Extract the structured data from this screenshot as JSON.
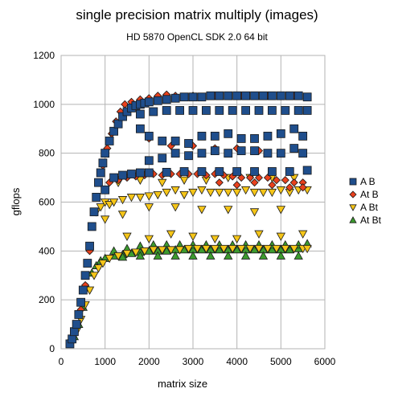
{
  "chart_data": {
    "type": "scatter",
    "title": "single precision matrix multiply (images)",
    "subtitle": "HD 5870 OpenCL SDK 2.0 64 bit",
    "xlabel": "matrix size",
    "ylabel": "gflops",
    "xlim": [
      0,
      6000
    ],
    "ylim": [
      0,
      1200
    ],
    "xticks": [
      0,
      1000,
      2000,
      3000,
      4000,
      5000,
      6000
    ],
    "yticks": [
      0,
      200,
      400,
      600,
      800,
      1000,
      1200
    ],
    "grid": true,
    "legend": "right",
    "series": [
      {
        "name": "A B",
        "marker": "square",
        "color": "#1f4e8c",
        "points": [
          [
            200,
            20
          ],
          [
            250,
            40
          ],
          [
            300,
            70
          ],
          [
            350,
            100
          ],
          [
            400,
            140
          ],
          [
            450,
            190
          ],
          [
            500,
            240
          ],
          [
            550,
            300
          ],
          [
            600,
            350
          ],
          [
            650,
            420
          ],
          [
            700,
            500
          ],
          [
            750,
            560
          ],
          [
            800,
            620
          ],
          [
            850,
            680
          ],
          [
            900,
            720
          ],
          [
            950,
            760
          ],
          [
            1000,
            800
          ],
          [
            1100,
            850
          ],
          [
            1200,
            890
          ],
          [
            1300,
            920
          ],
          [
            1400,
            950
          ],
          [
            1500,
            970
          ],
          [
            1600,
            985
          ],
          [
            1700,
            995
          ],
          [
            1800,
            1000
          ],
          [
            1900,
            1005
          ],
          [
            2000,
            1010
          ],
          [
            2200,
            1015
          ],
          [
            2400,
            1020
          ],
          [
            2600,
            1025
          ],
          [
            2800,
            1030
          ],
          [
            3000,
            1030
          ],
          [
            3200,
            1030
          ],
          [
            3400,
            1035
          ],
          [
            3600,
            1035
          ],
          [
            3800,
            1035
          ],
          [
            4000,
            1035
          ],
          [
            4200,
            1035
          ],
          [
            4400,
            1035
          ],
          [
            4600,
            1035
          ],
          [
            4800,
            1035
          ],
          [
            5000,
            1035
          ],
          [
            5200,
            1035
          ],
          [
            5400,
            1035
          ],
          [
            5600,
            1030
          ],
          [
            1000,
            650
          ],
          [
            1200,
            700
          ],
          [
            1400,
            710
          ],
          [
            1600,
            715
          ],
          [
            1800,
            720
          ],
          [
            2000,
            720
          ],
          [
            2400,
            722
          ],
          [
            2800,
            725
          ],
          [
            3200,
            725
          ],
          [
            3600,
            725
          ],
          [
            4000,
            725
          ],
          [
            4400,
            725
          ],
          [
            4800,
            725
          ],
          [
            5200,
            725
          ],
          [
            5600,
            730
          ],
          [
            1800,
            960
          ],
          [
            2100,
            970
          ],
          [
            2400,
            975
          ],
          [
            2700,
            975
          ],
          [
            3000,
            975
          ],
          [
            3300,
            975
          ],
          [
            3600,
            975
          ],
          [
            3900,
            975
          ],
          [
            4200,
            975
          ],
          [
            4500,
            975
          ],
          [
            4800,
            975
          ],
          [
            5100,
            975
          ],
          [
            5400,
            975
          ],
          [
            5600,
            975
          ],
          [
            1800,
            900
          ],
          [
            2000,
            870
          ],
          [
            2300,
            850
          ],
          [
            2600,
            850
          ],
          [
            2900,
            840
          ],
          [
            3200,
            870
          ],
          [
            3500,
            870
          ],
          [
            3800,
            880
          ],
          [
            4100,
            860
          ],
          [
            4400,
            860
          ],
          [
            4700,
            870
          ],
          [
            5000,
            880
          ],
          [
            5300,
            900
          ],
          [
            5500,
            870
          ],
          [
            2000,
            770
          ],
          [
            2300,
            780
          ],
          [
            2600,
            800
          ],
          [
            2900,
            790
          ],
          [
            3200,
            800
          ],
          [
            3500,
            810
          ],
          [
            3800,
            800
          ],
          [
            4100,
            810
          ],
          [
            4400,
            810
          ],
          [
            4700,
            800
          ],
          [
            5000,
            800
          ],
          [
            5300,
            820
          ],
          [
            5500,
            800
          ]
        ]
      },
      {
        "name": "At B",
        "marker": "diamond",
        "color": "#e8411d",
        "points": [
          [
            250,
            30
          ],
          [
            350,
            90
          ],
          [
            450,
            160
          ],
          [
            550,
            260
          ],
          [
            650,
            400
          ],
          [
            750,
            560
          ],
          [
            850,
            680
          ],
          [
            950,
            750
          ],
          [
            1050,
            820
          ],
          [
            1150,
            880
          ],
          [
            1250,
            930
          ],
          [
            1350,
            970
          ],
          [
            1450,
            1000
          ],
          [
            1600,
            1010
          ],
          [
            1800,
            1020
          ],
          [
            2000,
            1025
          ],
          [
            2200,
            1035
          ],
          [
            2400,
            1040
          ],
          [
            2600,
            1035
          ],
          [
            2800,
            1030
          ],
          [
            3000,
            1035
          ],
          [
            3200,
            1030
          ],
          [
            3500,
            1035
          ],
          [
            3800,
            1035
          ],
          [
            4100,
            1035
          ],
          [
            4400,
            1035
          ],
          [
            4700,
            1035
          ],
          [
            5000,
            1035
          ],
          [
            5300,
            1035
          ],
          [
            5600,
            1030
          ],
          [
            1100,
            680
          ],
          [
            1300,
            690
          ],
          [
            1500,
            700
          ],
          [
            1700,
            705
          ],
          [
            1900,
            710
          ],
          [
            2100,
            715
          ],
          [
            2300,
            710
          ],
          [
            2500,
            715
          ],
          [
            2700,
            715
          ],
          [
            2900,
            715
          ],
          [
            3100,
            715
          ],
          [
            3300,
            710
          ],
          [
            3500,
            715
          ],
          [
            3700,
            710
          ],
          [
            3900,
            705
          ],
          [
            4100,
            700
          ],
          [
            4300,
            700
          ],
          [
            4500,
            700
          ],
          [
            4700,
            700
          ],
          [
            4900,
            690
          ],
          [
            5100,
            690
          ],
          [
            5300,
            680
          ],
          [
            5500,
            680
          ],
          [
            2000,
            860
          ],
          [
            2500,
            830
          ],
          [
            3000,
            830
          ],
          [
            3500,
            820
          ],
          [
            4000,
            820
          ],
          [
            4500,
            810
          ],
          [
            5000,
            800
          ],
          [
            3600,
            680
          ],
          [
            4000,
            670
          ],
          [
            4400,
            680
          ],
          [
            4800,
            670
          ],
          [
            5200,
            660
          ],
          [
            5500,
            660
          ]
        ]
      },
      {
        "name": "A Bt",
        "marker": "triangle-down",
        "color": "#f5c518",
        "points": [
          [
            250,
            25
          ],
          [
            350,
            70
          ],
          [
            450,
            120
          ],
          [
            550,
            180
          ],
          [
            650,
            240
          ],
          [
            750,
            300
          ],
          [
            850,
            330
          ],
          [
            950,
            350
          ],
          [
            1100,
            370
          ],
          [
            1300,
            380
          ],
          [
            1500,
            390
          ],
          [
            1700,
            395
          ],
          [
            1900,
            400
          ],
          [
            2100,
            405
          ],
          [
            2300,
            405
          ],
          [
            2500,
            405
          ],
          [
            2700,
            405
          ],
          [
            2900,
            410
          ],
          [
            3100,
            410
          ],
          [
            3300,
            410
          ],
          [
            3500,
            410
          ],
          [
            3700,
            410
          ],
          [
            3900,
            410
          ],
          [
            4100,
            410
          ],
          [
            4300,
            410
          ],
          [
            4500,
            410
          ],
          [
            4700,
            410
          ],
          [
            4900,
            410
          ],
          [
            5100,
            410
          ],
          [
            5300,
            410
          ],
          [
            5500,
            410
          ],
          [
            5600,
            410
          ],
          [
            800,
            560
          ],
          [
            900,
            580
          ],
          [
            1000,
            600
          ],
          [
            1100,
            590
          ],
          [
            1200,
            600
          ],
          [
            1400,
            610
          ],
          [
            1600,
            620
          ],
          [
            1800,
            620
          ],
          [
            2000,
            625
          ],
          [
            2200,
            630
          ],
          [
            2400,
            640
          ],
          [
            2600,
            650
          ],
          [
            2800,
            630
          ],
          [
            3000,
            640
          ],
          [
            3200,
            650
          ],
          [
            3400,
            640
          ],
          [
            3600,
            640
          ],
          [
            3800,
            640
          ],
          [
            4000,
            640
          ],
          [
            4200,
            650
          ],
          [
            4400,
            640
          ],
          [
            4600,
            640
          ],
          [
            4800,
            640
          ],
          [
            5000,
            650
          ],
          [
            5200,
            640
          ],
          [
            5400,
            650
          ],
          [
            5600,
            650
          ],
          [
            1000,
            530
          ],
          [
            1400,
            550
          ],
          [
            2000,
            580
          ],
          [
            2600,
            580
          ],
          [
            3200,
            570
          ],
          [
            3800,
            570
          ],
          [
            4400,
            560
          ],
          [
            5000,
            570
          ],
          [
            1300,
            680
          ],
          [
            1800,
            690
          ],
          [
            2300,
            680
          ],
          [
            2800,
            690
          ],
          [
            3300,
            690
          ],
          [
            3800,
            700
          ],
          [
            4300,
            700
          ],
          [
            4800,
            700
          ],
          [
            5300,
            700
          ],
          [
            1500,
            460
          ],
          [
            2000,
            450
          ],
          [
            2500,
            470
          ],
          [
            3000,
            460
          ],
          [
            3500,
            450
          ],
          [
            4000,
            450
          ],
          [
            4500,
            470
          ],
          [
            5000,
            460
          ],
          [
            5500,
            470
          ]
        ]
      },
      {
        "name": "At Bt",
        "marker": "triangle-up",
        "color": "#3c9b2e",
        "points": [
          [
            300,
            50
          ],
          [
            400,
            100
          ],
          [
            500,
            170
          ],
          [
            600,
            250
          ],
          [
            700,
            310
          ],
          [
            800,
            340
          ],
          [
            900,
            360
          ],
          [
            1000,
            370
          ],
          [
            1200,
            380
          ],
          [
            1400,
            385
          ],
          [
            1600,
            390
          ],
          [
            1800,
            395
          ],
          [
            2000,
            400
          ],
          [
            2200,
            400
          ],
          [
            2400,
            400
          ],
          [
            2600,
            405
          ],
          [
            2800,
            405
          ],
          [
            3000,
            405
          ],
          [
            3200,
            405
          ],
          [
            3400,
            405
          ],
          [
            3600,
            405
          ],
          [
            3800,
            405
          ],
          [
            4000,
            405
          ],
          [
            4200,
            405
          ],
          [
            4400,
            405
          ],
          [
            4600,
            405
          ],
          [
            4800,
            405
          ],
          [
            5000,
            405
          ],
          [
            5200,
            405
          ],
          [
            5400,
            410
          ],
          [
            5600,
            430
          ],
          [
            1200,
            400
          ],
          [
            1500,
            410
          ],
          [
            1800,
            420
          ],
          [
            2100,
            425
          ],
          [
            2400,
            425
          ],
          [
            2700,
            425
          ],
          [
            3000,
            425
          ],
          [
            3300,
            425
          ],
          [
            3600,
            425
          ],
          [
            3900,
            425
          ],
          [
            4200,
            425
          ],
          [
            4500,
            425
          ],
          [
            4800,
            425
          ],
          [
            5100,
            425
          ],
          [
            5400,
            425
          ],
          [
            1400,
            375
          ],
          [
            1800,
            380
          ],
          [
            2200,
            380
          ],
          [
            2600,
            380
          ],
          [
            3000,
            380
          ],
          [
            3400,
            380
          ],
          [
            3800,
            380
          ],
          [
            4200,
            380
          ],
          [
            4600,
            380
          ],
          [
            5000,
            380
          ],
          [
            5400,
            380
          ]
        ]
      }
    ]
  }
}
